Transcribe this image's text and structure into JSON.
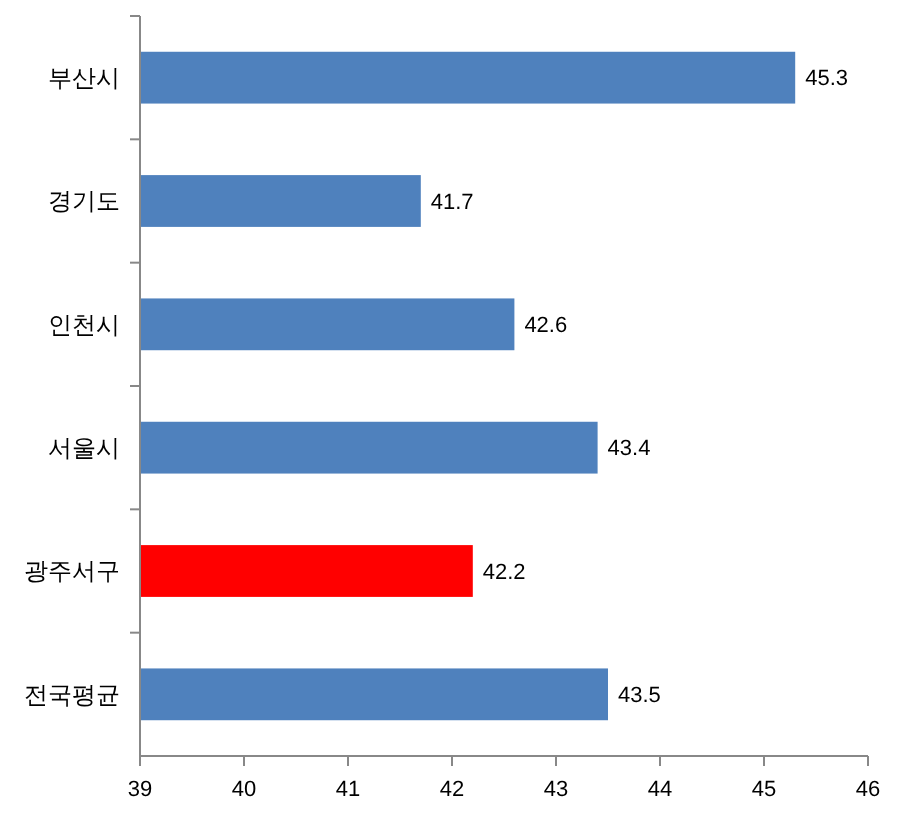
{
  "chart_data": {
    "type": "bar",
    "orientation": "horizontal",
    "categories": [
      "부산시",
      "경기도",
      "인천시",
      "서울시",
      "광주서구",
      "전국평균"
    ],
    "values": [
      45.3,
      41.7,
      42.6,
      43.4,
      42.2,
      43.5
    ],
    "colors": [
      "#4f81bd",
      "#4f81bd",
      "#4f81bd",
      "#4f81bd",
      "#ff0000",
      "#4f81bd"
    ],
    "xlim": [
      39,
      46
    ],
    "xticks": [
      39,
      40,
      41,
      42,
      43,
      44,
      45,
      46
    ],
    "data_labels": true
  }
}
